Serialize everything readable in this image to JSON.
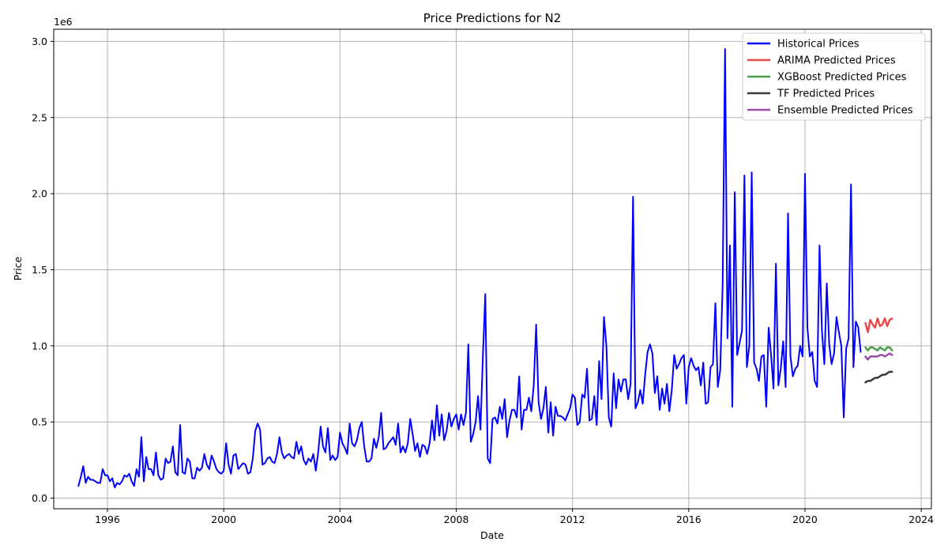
{
  "chart_data": {
    "type": "line",
    "title": "Price Predictions for N2",
    "xlabel": "Date",
    "ylabel": "Price",
    "y_multiplier_label": "1e6",
    "xlim": [
      1994.15,
      2024.35
    ],
    "ylim": [
      -0.07,
      3.08
    ],
    "x_ticks": [
      1996,
      2000,
      2004,
      2008,
      2012,
      2016,
      2020,
      2024
    ],
    "y_ticks": [
      0.0,
      0.5,
      1.0,
      1.5,
      2.0,
      2.5,
      3.0
    ],
    "y_tick_labels": [
      "0.0",
      "0.5",
      "1.0",
      "1.5",
      "2.0",
      "2.5",
      "3.0"
    ],
    "grid": true,
    "legend_position": "top-right",
    "legend": [
      "Historical Prices",
      "ARIMA Predicted Prices",
      "XGBoost Predicted Prices",
      "TF Predicted Prices",
      "Ensemble Predicted Prices"
    ],
    "colors": {
      "historical": "#0000ff",
      "arima": "#e84a4a",
      "xgboost": "#4a9e4a",
      "tf": "#3a3a3a",
      "ensemble": "#9a4ea8"
    },
    "series": [
      {
        "name": "Historical Prices",
        "key": "historical",
        "start": 1995.0,
        "step": 0.0833333,
        "values": [
          0.08,
          0.14,
          0.21,
          0.1,
          0.14,
          0.12,
          0.12,
          0.11,
          0.1,
          0.1,
          0.19,
          0.15,
          0.15,
          0.11,
          0.13,
          0.07,
          0.1,
          0.09,
          0.11,
          0.15,
          0.14,
          0.16,
          0.11,
          0.08,
          0.19,
          0.14,
          0.4,
          0.11,
          0.27,
          0.19,
          0.19,
          0.15,
          0.3,
          0.15,
          0.12,
          0.13,
          0.26,
          0.23,
          0.24,
          0.34,
          0.17,
          0.15,
          0.48,
          0.17,
          0.16,
          0.26,
          0.24,
          0.13,
          0.13,
          0.2,
          0.18,
          0.2,
          0.29,
          0.22,
          0.19,
          0.28,
          0.24,
          0.19,
          0.17,
          0.16,
          0.18,
          0.36,
          0.22,
          0.16,
          0.28,
          0.29,
          0.19,
          0.21,
          0.23,
          0.22,
          0.16,
          0.17,
          0.26,
          0.44,
          0.49,
          0.45,
          0.22,
          0.23,
          0.26,
          0.27,
          0.24,
          0.23,
          0.29,
          0.4,
          0.3,
          0.26,
          0.28,
          0.29,
          0.27,
          0.26,
          0.37,
          0.29,
          0.34,
          0.25,
          0.22,
          0.26,
          0.24,
          0.29,
          0.18,
          0.3,
          0.47,
          0.34,
          0.3,
          0.46,
          0.25,
          0.28,
          0.25,
          0.27,
          0.43,
          0.36,
          0.33,
          0.29,
          0.49,
          0.36,
          0.34,
          0.38,
          0.46,
          0.5,
          0.34,
          0.24,
          0.24,
          0.26,
          0.39,
          0.33,
          0.4,
          0.56,
          0.32,
          0.33,
          0.36,
          0.38,
          0.4,
          0.35,
          0.49,
          0.3,
          0.34,
          0.3,
          0.36,
          0.52,
          0.42,
          0.31,
          0.36,
          0.27,
          0.35,
          0.34,
          0.29,
          0.36,
          0.51,
          0.38,
          0.61,
          0.41,
          0.55,
          0.38,
          0.44,
          0.56,
          0.47,
          0.52,
          0.55,
          0.45,
          0.55,
          0.48,
          0.56,
          1.01,
          0.37,
          0.42,
          0.5,
          0.67,
          0.45,
          0.93,
          1.34,
          0.26,
          0.23,
          0.52,
          0.53,
          0.49,
          0.6,
          0.52,
          0.65,
          0.4,
          0.51,
          0.58,
          0.58,
          0.53,
          0.8,
          0.45,
          0.58,
          0.58,
          0.66,
          0.57,
          0.74,
          1.14,
          0.63,
          0.52,
          0.59,
          0.73,
          0.43,
          0.63,
          0.41,
          0.6,
          0.54,
          0.54,
          0.53,
          0.51,
          0.55,
          0.59,
          0.68,
          0.66,
          0.48,
          0.5,
          0.68,
          0.66,
          0.85,
          0.51,
          0.52,
          0.67,
          0.48,
          0.9,
          0.65,
          1.19,
          1.0,
          0.53,
          0.47,
          0.82,
          0.59,
          0.78,
          0.7,
          0.78,
          0.78,
          0.65,
          0.75,
          1.98,
          0.59,
          0.63,
          0.71,
          0.62,
          0.81,
          0.96,
          1.01,
          0.95,
          0.69,
          0.8,
          0.58,
          0.72,
          0.62,
          0.75,
          0.57,
          0.71,
          0.94,
          0.85,
          0.88,
          0.92,
          0.94,
          0.62,
          0.86,
          0.92,
          0.87,
          0.84,
          0.86,
          0.74,
          0.89,
          0.62,
          0.63,
          0.86,
          0.88,
          1.28,
          0.73,
          0.84,
          1.4,
          2.95,
          1.05,
          1.66,
          0.6,
          2.01,
          0.94,
          1.02,
          1.1,
          2.12,
          0.86,
          1.0,
          2.14,
          0.89,
          0.85,
          0.77,
          0.93,
          0.94,
          0.6,
          1.12,
          0.94,
          0.72,
          1.54,
          0.74,
          0.85,
          1.03,
          0.73,
          1.87,
          0.93,
          0.8,
          0.85,
          0.87,
          1.0,
          0.93,
          2.13,
          1.12,
          0.93,
          0.96,
          0.77,
          0.73,
          1.66,
          1.1,
          0.88,
          1.41,
          1.01,
          0.88,
          0.95,
          1.19,
          1.09,
          1.0,
          0.53,
          0.98,
          1.05,
          2.06,
          0.86,
          1.16,
          1.12,
          0.96
        ]
      },
      {
        "name": "ARIMA Predicted Prices",
        "key": "arima",
        "start": 2022.08,
        "step": 0.0833333,
        "values": [
          1.15,
          1.09,
          1.17,
          1.14,
          1.12,
          1.18,
          1.13,
          1.14,
          1.18,
          1.13,
          1.17,
          1.18
        ]
      },
      {
        "name": "XGBoost Predicted Prices",
        "key": "xgboost",
        "start": 2022.08,
        "step": 0.0833333,
        "values": [
          0.99,
          0.97,
          0.99,
          0.99,
          0.98,
          0.97,
          0.99,
          0.98,
          0.97,
          0.99,
          0.99,
          0.97
        ]
      },
      {
        "name": "TF Predicted Prices",
        "key": "tf",
        "start": 2022.08,
        "step": 0.0833333,
        "values": [
          0.76,
          0.77,
          0.77,
          0.78,
          0.79,
          0.79,
          0.8,
          0.81,
          0.81,
          0.82,
          0.83,
          0.83
        ]
      },
      {
        "name": "Ensemble Predicted Prices",
        "key": "ensemble",
        "start": 2022.08,
        "step": 0.0833333,
        "values": [
          0.93,
          0.91,
          0.93,
          0.93,
          0.93,
          0.93,
          0.94,
          0.94,
          0.93,
          0.94,
          0.95,
          0.94
        ]
      }
    ]
  }
}
